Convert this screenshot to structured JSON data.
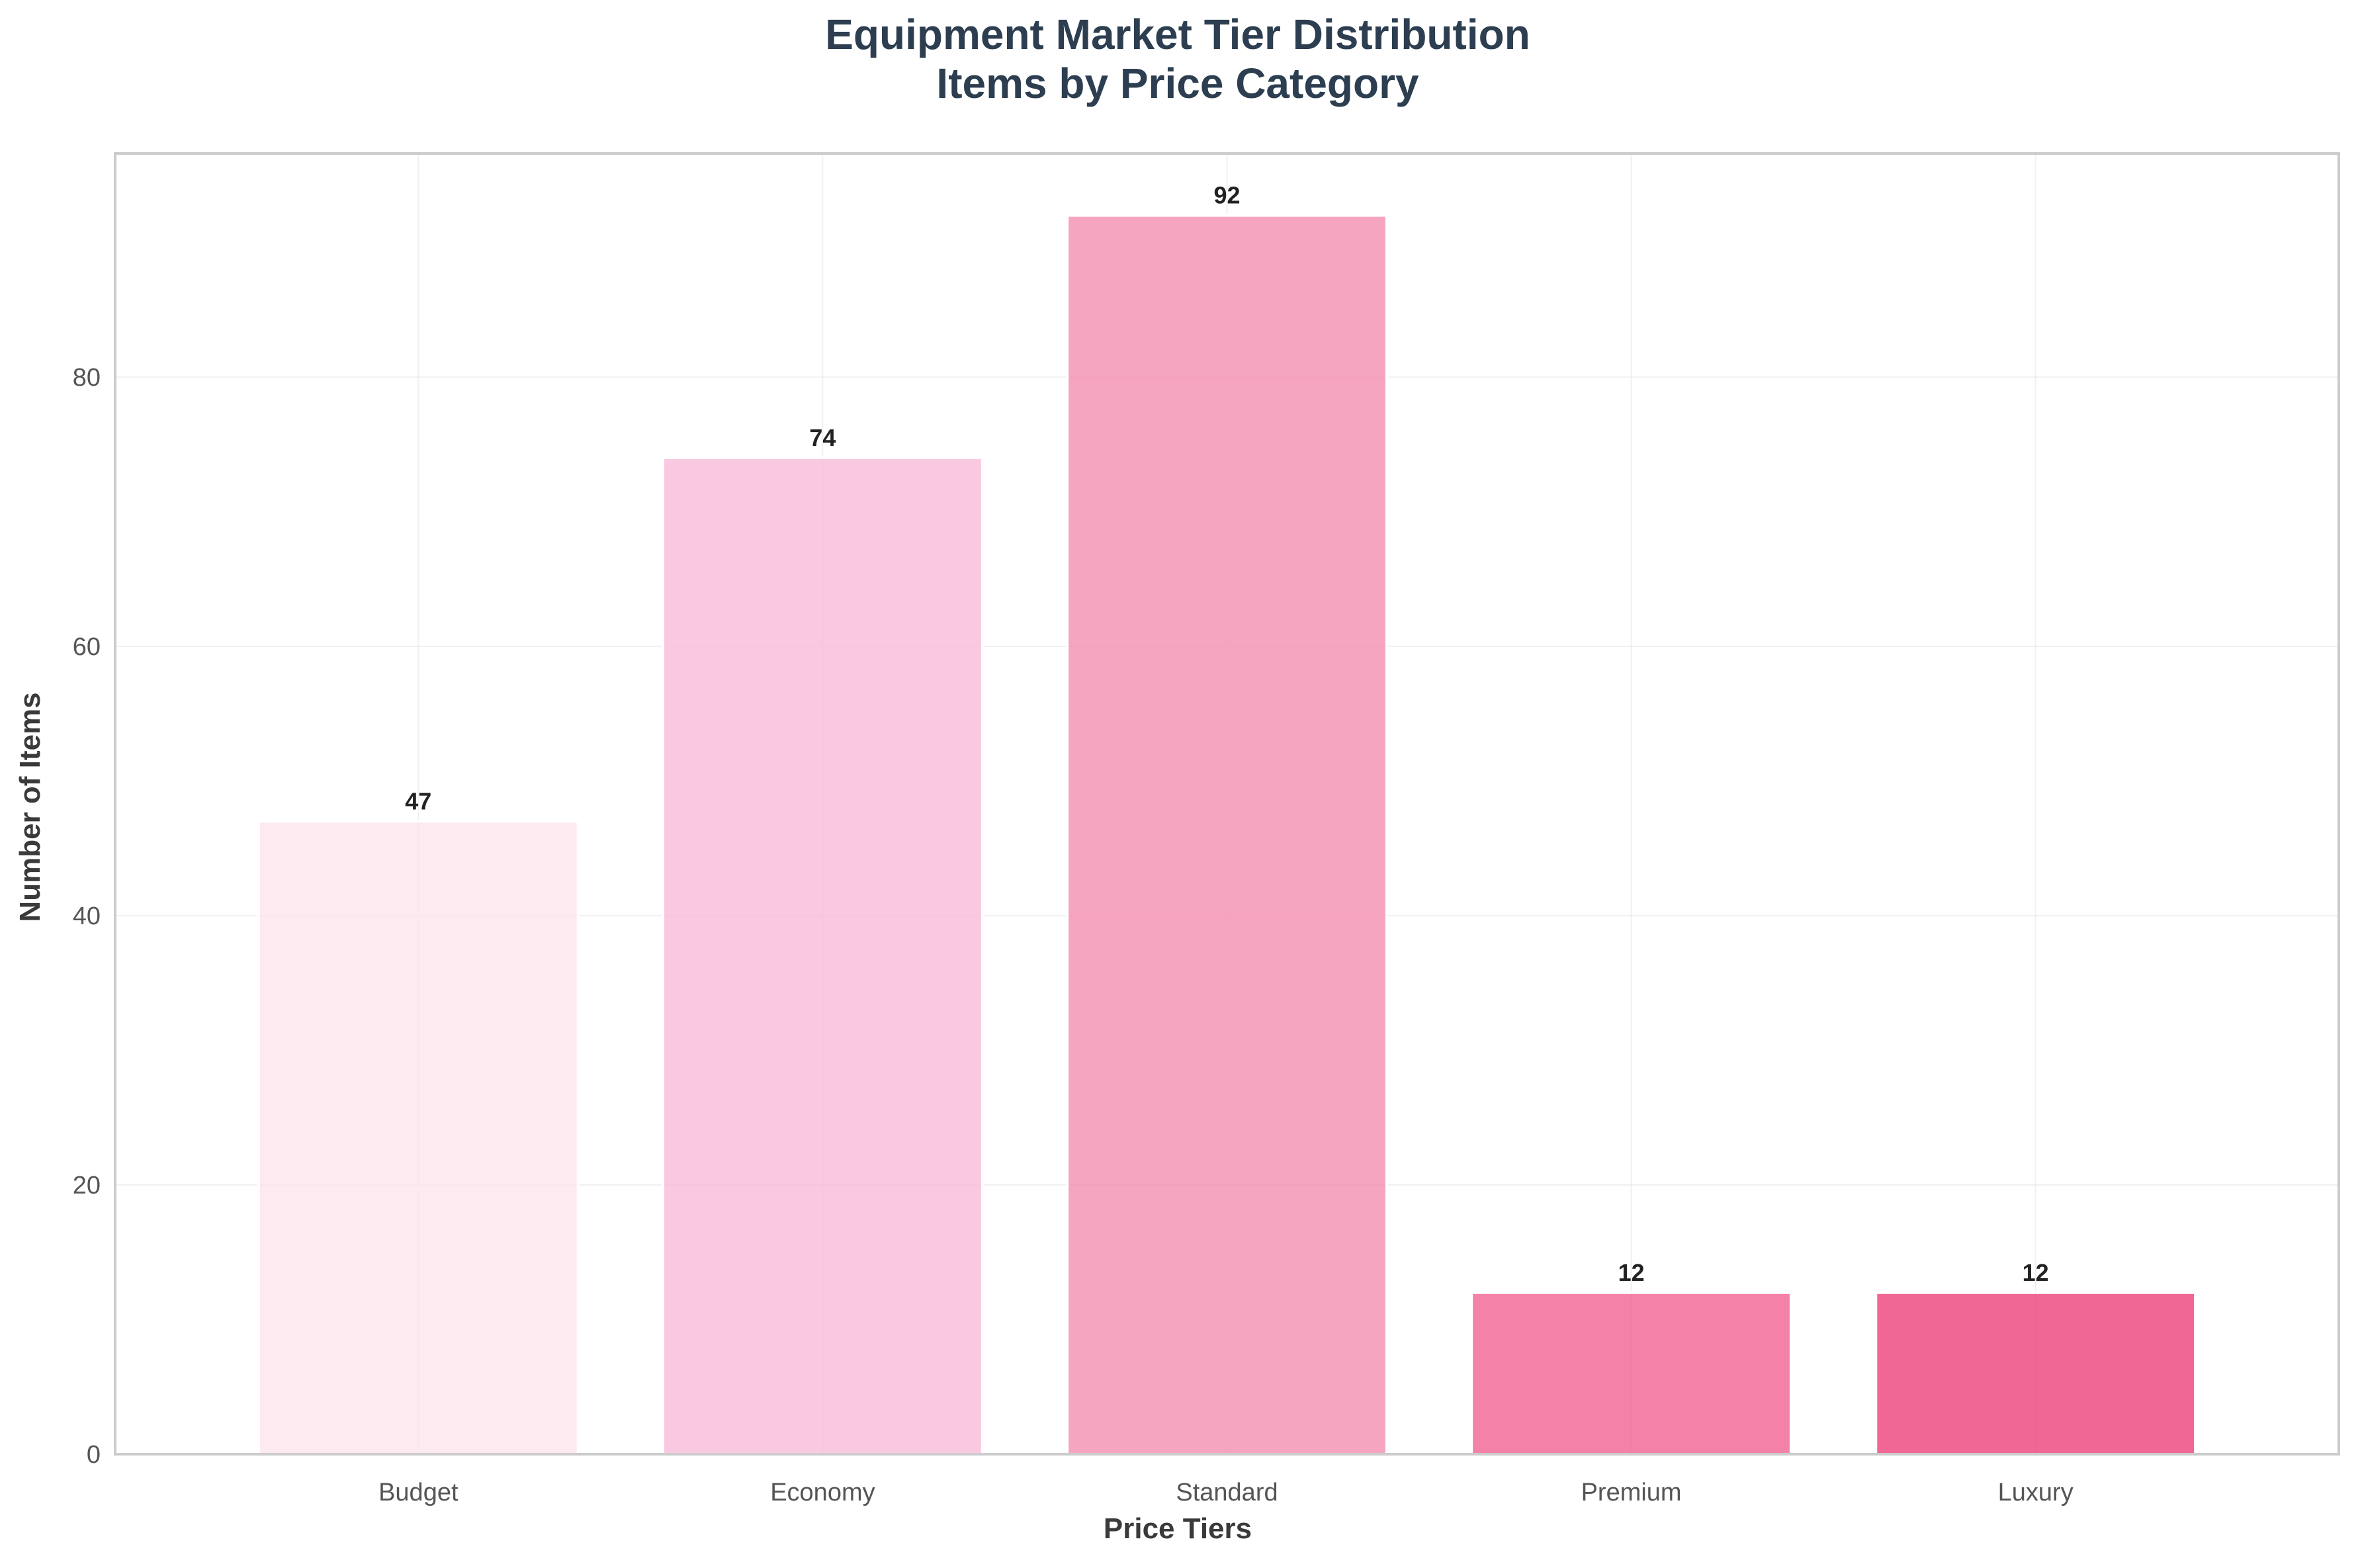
{
  "chart_data": {
    "type": "bar",
    "title": "Equipment Market Tier Distribution",
    "subtitle": "Items by Price Category",
    "xlabel": "Price Tiers",
    "ylabel": "Number of Items",
    "categories": [
      "Budget",
      "Economy",
      "Standard",
      "Premium",
      "Luxury"
    ],
    "values": [
      47,
      74,
      92,
      12,
      12
    ],
    "value_labels": [
      "47",
      "74",
      "92",
      "12",
      "12"
    ],
    "ylim": [
      0,
      96.6
    ],
    "yticks": [
      0,
      20,
      40,
      60,
      80
    ],
    "ytick_labels": [
      "0",
      "20",
      "40",
      "60",
      "80"
    ],
    "grid": true,
    "legend": "none",
    "colors": {
      "bars": [
        "#fce4ec",
        "#f8bbd9",
        "#f48fb1",
        "#f06292",
        "#ec407a"
      ],
      "bar_opacity": 0.8,
      "bar_edge": "#ffffff",
      "title": "#2c3e50",
      "axis_label": "#3a3a3a",
      "tick_label": "#555555",
      "value_label": "#222222",
      "grid": "#e6e6e6",
      "frame": "#cccccc"
    }
  }
}
